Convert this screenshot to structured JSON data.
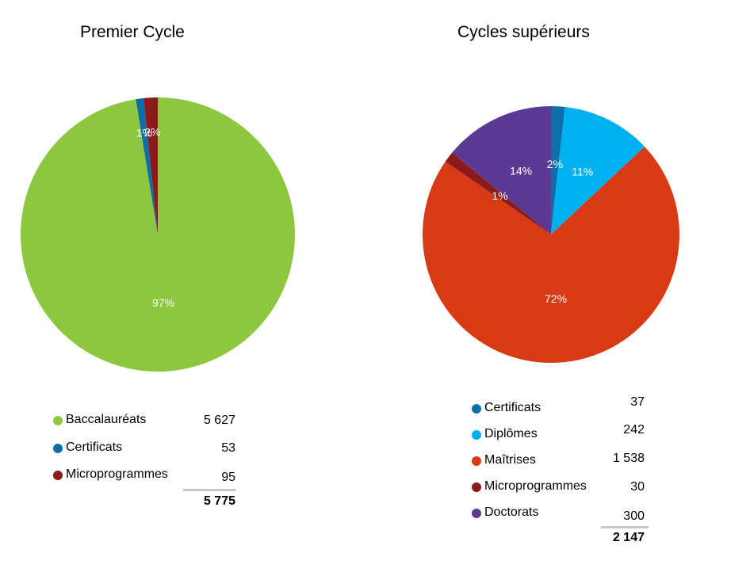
{
  "chart_data": [
    {
      "type": "pie",
      "title": "Premier Cycle",
      "slices": [
        {
          "name": "Baccalauréats",
          "value": 5627,
          "value_label": "5 627",
          "pct_label": "97%",
          "color": "#8dc63f"
        },
        {
          "name": "Certificats",
          "value": 53,
          "value_label": "53",
          "pct_label": "1%",
          "color": "#0e6fa8"
        },
        {
          "name": "Microprogrammes",
          "value": 95,
          "value_label": "95",
          "pct_label": "2%",
          "color": "#8b1a1a"
        }
      ],
      "total_label": "5 775",
      "legend_placement": "bottom"
    },
    {
      "type": "pie",
      "title": "Cycles supérieurs",
      "slices": [
        {
          "name": "Certificats",
          "value": 37,
          "value_label": "37",
          "pct_label": "2%",
          "color": "#0e6fa8"
        },
        {
          "name": "Diplômes",
          "value": 242,
          "value_label": "242",
          "pct_label": "11%",
          "color": "#00b0f0"
        },
        {
          "name": "Maîtrises",
          "value": 1538,
          "value_label": "1 538",
          "pct_label": "72%",
          "color": "#d93a16"
        },
        {
          "name": "Microprogrammes",
          "value": 30,
          "value_label": "30",
          "pct_label": "1%",
          "color": "#8b1a1a"
        },
        {
          "name": "Doctorats",
          "value": 300,
          "value_label": "300",
          "pct_label": "14%",
          "color": "#5b3a94"
        }
      ],
      "total_label": "2 147",
      "legend_placement": "bottom"
    }
  ]
}
